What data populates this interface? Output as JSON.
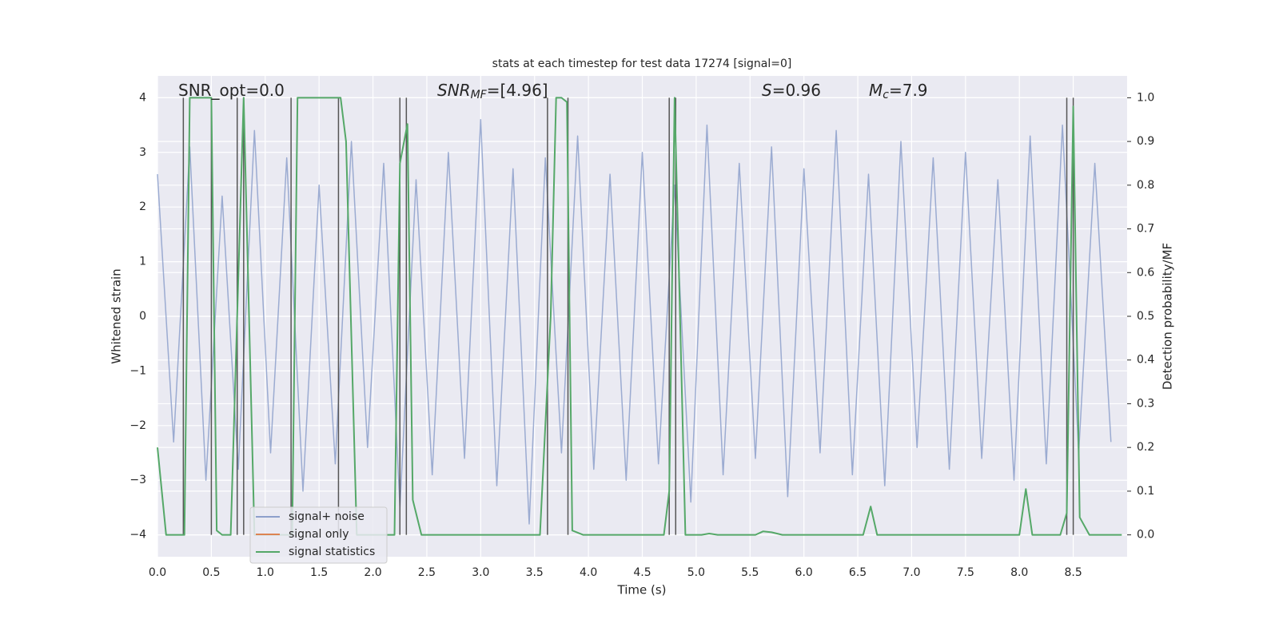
{
  "chart_data": {
    "type": "line",
    "title": "stats at each timestep for test data 17274 [signal=0]",
    "xlabel": "Time (s)",
    "ylabel": "Whitened strain",
    "y2label": "Detection probability/MF",
    "annotations": [
      {
        "text": "SNR_opt=0.0"
      },
      {
        "text": "SNR",
        "sub": "MF",
        "rest": "=[4.96]"
      },
      {
        "text": "S",
        "rest": "=0.96"
      },
      {
        "text": "M",
        "sub": "c",
        "rest": "=7.9"
      }
    ],
    "xlim": [
      0,
      9.0
    ],
    "ylim": [
      -4.4,
      4.4
    ],
    "y2lim": [
      -0.05,
      1.05
    ],
    "xticks": [
      {
        "value": 0,
        "label": "0.0"
      },
      {
        "value": 0.5,
        "label": "0.5"
      },
      {
        "value": 1,
        "label": "1.0"
      },
      {
        "value": 1.5,
        "label": "1.5"
      },
      {
        "value": 2,
        "label": "2.0"
      },
      {
        "value": 2.5,
        "label": "2.5"
      },
      {
        "value": 3,
        "label": "3.0"
      },
      {
        "value": 3.5,
        "label": "3.5"
      },
      {
        "value": 4,
        "label": "4.0"
      },
      {
        "value": 4.5,
        "label": "4.5"
      },
      {
        "value": 5,
        "label": "5.0"
      },
      {
        "value": 5.5,
        "label": "5.5"
      },
      {
        "value": 6,
        "label": "6.0"
      },
      {
        "value": 6.5,
        "label": "6.5"
      },
      {
        "value": 7,
        "label": "7.0"
      },
      {
        "value": 7.5,
        "label": "7.5"
      },
      {
        "value": 8,
        "label": "8.0"
      },
      {
        "value": 8.5,
        "label": "8.5"
      }
    ],
    "yticks": [
      {
        "value": -4,
        "label": "−4"
      },
      {
        "value": -3,
        "label": "−3"
      },
      {
        "value": -2,
        "label": "−2"
      },
      {
        "value": -1,
        "label": "−1"
      },
      0,
      1,
      2,
      3,
      4
    ],
    "y2ticks": [
      {
        "value": 0,
        "label": "0.0"
      },
      {
        "value": 0.1,
        "label": "0.1"
      },
      {
        "value": 0.2,
        "label": "0.2"
      },
      {
        "value": 0.3,
        "label": "0.3"
      },
      {
        "value": 0.4,
        "label": "0.4"
      },
      {
        "value": 0.5,
        "label": "0.5"
      },
      {
        "value": 0.6,
        "label": "0.6"
      },
      {
        "value": 0.7,
        "label": "0.7"
      },
      {
        "value": 0.8,
        "label": "0.8"
      },
      {
        "value": 0.9,
        "label": "0.9"
      },
      {
        "value": 1,
        "label": "1.0"
      }
    ],
    "grid": true,
    "series": [
      {
        "name": "signal+ noise",
        "color": "#8da0cb",
        "x": [
          0,
          0.15,
          0.3,
          0.45,
          0.6,
          0.75,
          0.9,
          1.05,
          1.2,
          1.35,
          1.5,
          1.65,
          1.8,
          1.95,
          2.1,
          2.25,
          2.4,
          2.55,
          2.7,
          2.85,
          3.0,
          3.15,
          3.3,
          3.45,
          3.6,
          3.75,
          3.9,
          4.05,
          4.2,
          4.35,
          4.5,
          4.65,
          4.8,
          4.95,
          5.1,
          5.25,
          5.4,
          5.55,
          5.7,
          5.85,
          6.0,
          6.15,
          6.3,
          6.45,
          6.6,
          6.75,
          6.9,
          7.05,
          7.2,
          7.35,
          7.5,
          7.65,
          7.8,
          7.95,
          8.1,
          8.25,
          8.4,
          8.55,
          8.7,
          8.85
        ],
        "values": [
          2.6,
          -2.3,
          3.1,
          -3.0,
          2.2,
          -2.8,
          3.4,
          -2.5,
          2.9,
          -3.2,
          2.4,
          -2.7,
          3.2,
          -2.4,
          2.8,
          -3.5,
          2.5,
          -2.9,
          3.0,
          -2.6,
          3.6,
          -3.1,
          2.7,
          -3.8,
          2.9,
          -2.5,
          3.3,
          -2.8,
          2.6,
          -3.0,
          3.0,
          -2.7,
          2.4,
          -3.4,
          3.5,
          -2.9,
          2.8,
          -2.6,
          3.1,
          -3.3,
          2.7,
          -2.5,
          3.4,
          -2.9,
          2.6,
          -3.1,
          3.2,
          -2.4,
          2.9,
          -2.8,
          3.0,
          -2.6,
          2.5,
          -3.0,
          3.3,
          -2.7,
          3.5,
          -2.5,
          2.8,
          -2.3
        ]
      },
      {
        "name": "signal only",
        "color": "#dd8452",
        "x": [],
        "values": []
      },
      {
        "name": "signal statistics",
        "color": "#55a868",
        "axis": "y2",
        "x": [
          0,
          0.08,
          0.2,
          0.25,
          0.3,
          0.5,
          0.55,
          0.6,
          0.68,
          0.8,
          0.9,
          1.25,
          1.3,
          1.7,
          1.75,
          1.85,
          2.2,
          2.25,
          2.32,
          2.37,
          2.45,
          3.55,
          3.65,
          3.7,
          3.75,
          3.8,
          3.85,
          3.95,
          4.7,
          4.75,
          4.8,
          4.85,
          4.9,
          5.05,
          5.12,
          5.2,
          5.55,
          5.62,
          5.7,
          5.8,
          6.55,
          6.62,
          6.68,
          8.0,
          8.06,
          8.12,
          8.38,
          8.44,
          8.5,
          8.56,
          8.65,
          8.95
        ],
        "values": [
          0.2,
          0,
          0,
          0,
          1,
          1,
          0.01,
          0,
          0,
          1,
          0,
          0,
          1,
          1,
          0.9,
          0,
          0,
          0.85,
          0.94,
          0.08,
          0,
          0,
          0.5,
          1,
          1,
          0.99,
          0.01,
          0,
          0,
          0.1,
          1,
          0.5,
          0,
          0,
          0.003,
          0,
          0,
          0.008,
          0.006,
          0,
          0,
          0.065,
          0,
          0,
          0.105,
          0,
          0,
          0.05,
          0.98,
          0.04,
          0,
          0
        ]
      }
    ],
    "vlines": [
      0.24,
      0.5,
      0.74,
      0.8,
      1.24,
      1.68,
      2.25,
      2.31,
      3.62,
      3.81,
      4.75,
      4.81,
      8.44,
      8.5
    ],
    "vline_color": "#555555"
  }
}
